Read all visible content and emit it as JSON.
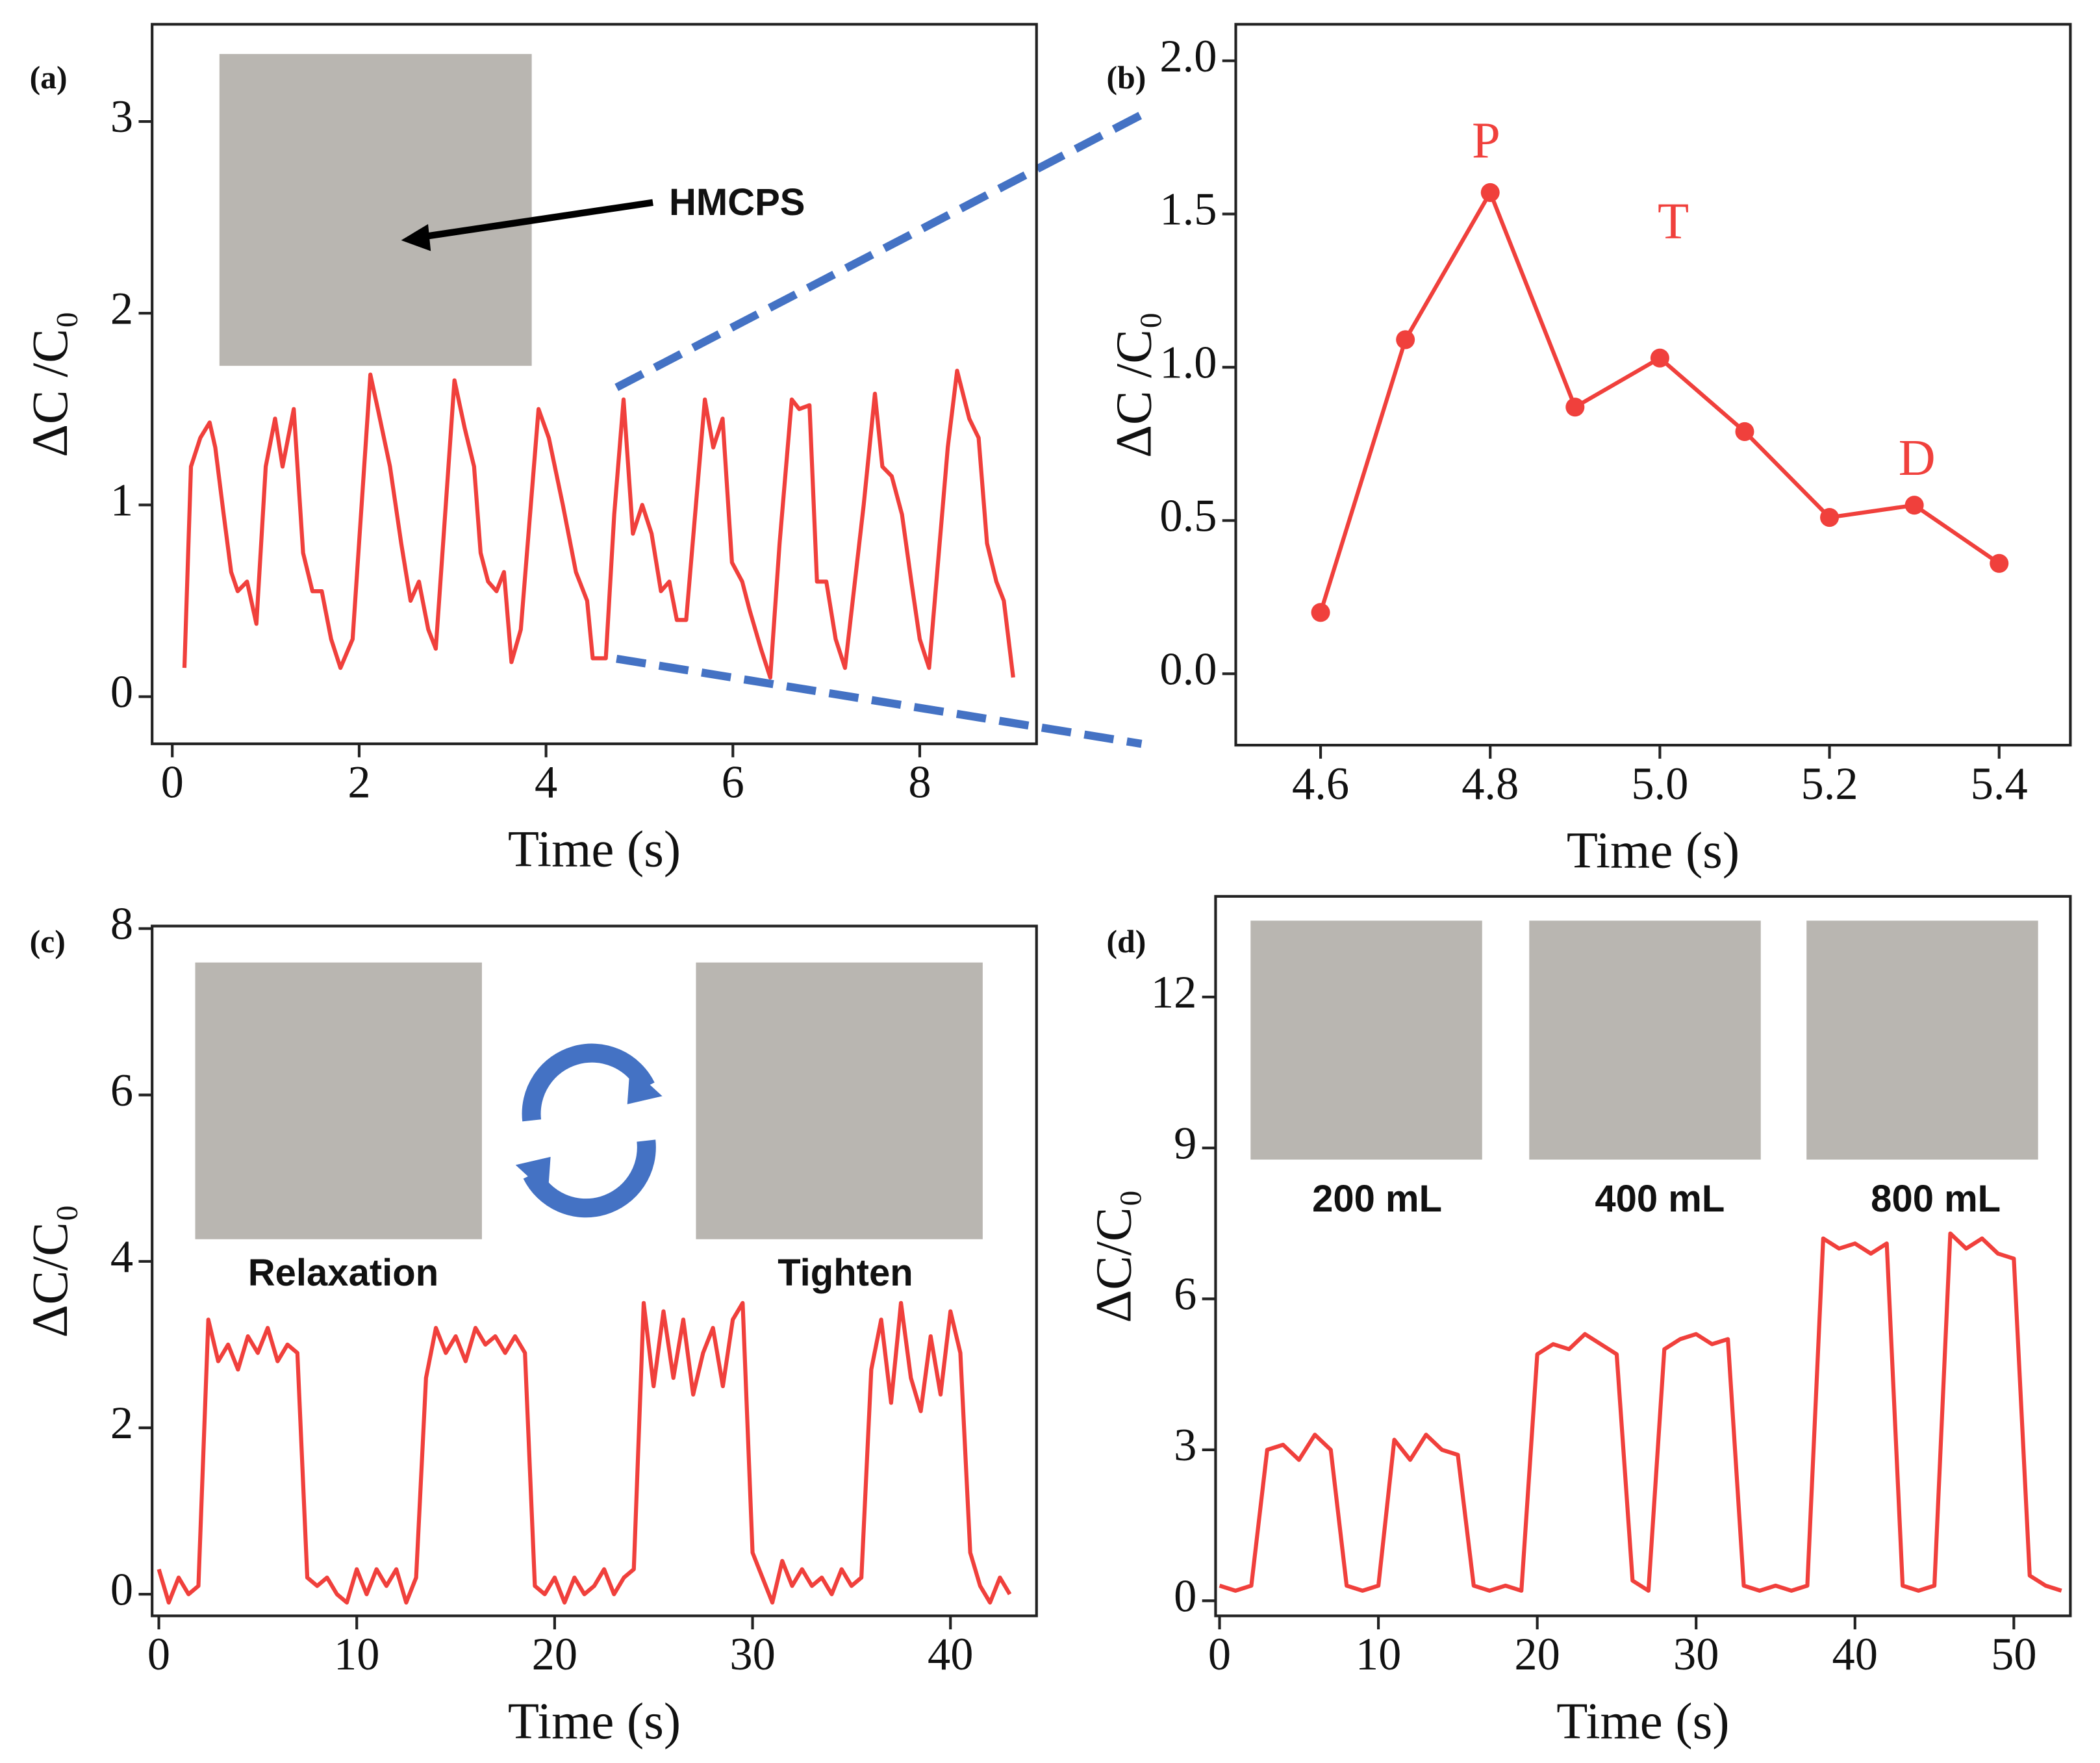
{
  "chart_data": [
    {
      "type": "line",
      "panel_label": "(a)",
      "xlabel": "Time (s)",
      "ylabel": "ΔC /C₀",
      "color": "#f0403c",
      "markers": false,
      "annotations": [
        "HMCPS"
      ],
      "x": [
        0.13,
        0.2,
        0.3,
        0.4,
        0.46,
        0.55,
        0.63,
        0.7,
        0.8,
        0.9,
        1.0,
        1.1,
        1.18,
        1.3,
        1.4,
        1.5,
        1.6,
        1.7,
        1.8,
        1.93,
        2.12,
        2.2,
        2.33,
        2.45,
        2.55,
        2.64,
        2.74,
        2.82,
        3.02,
        3.13,
        3.23,
        3.3,
        3.38,
        3.47,
        3.55,
        3.63,
        3.73,
        3.92,
        4.03,
        4.18,
        4.32,
        4.44,
        4.5,
        4.64,
        4.73,
        4.83,
        4.93,
        5.03,
        5.13,
        5.23,
        5.32,
        5.4,
        5.5,
        5.7,
        5.79,
        5.89,
        5.99,
        6.1,
        6.18,
        6.3,
        6.4,
        6.5,
        6.63,
        6.71,
        6.82,
        6.9,
        7.0,
        7.1,
        7.2,
        7.4,
        7.52,
        7.6,
        7.7,
        7.81,
        7.91,
        8.0,
        8.1,
        8.3,
        8.4,
        8.53,
        8.63,
        8.72,
        8.82,
        8.9,
        9.0
      ],
      "values": [
        0.15,
        1.2,
        1.35,
        1.43,
        1.3,
        0.95,
        0.65,
        0.55,
        0.6,
        0.38,
        1.2,
        1.45,
        1.2,
        1.5,
        0.75,
        0.55,
        0.55,
        0.3,
        0.15,
        0.3,
        1.68,
        1.5,
        1.2,
        0.8,
        0.5,
        0.6,
        0.35,
        0.25,
        1.65,
        1.4,
        1.2,
        0.75,
        0.6,
        0.55,
        0.65,
        0.18,
        0.35,
        1.5,
        1.35,
        1.0,
        0.65,
        0.5,
        0.2,
        0.2,
        0.95,
        1.55,
        0.85,
        1.0,
        0.85,
        0.55,
        0.6,
        0.4,
        0.4,
        1.55,
        1.3,
        1.45,
        0.7,
        0.6,
        0.45,
        0.25,
        0.1,
        0.8,
        1.55,
        1.5,
        1.52,
        0.6,
        0.6,
        0.3,
        0.15,
        1.0,
        1.58,
        1.2,
        1.15,
        0.95,
        0.6,
        0.3,
        0.15,
        1.3,
        1.7,
        1.45,
        1.35,
        0.8,
        0.6,
        0.5,
        0.1
      ],
      "xlim": [
        -0.216,
        9.25
      ],
      "ylim": [
        -0.246,
        3.507
      ],
      "xticks": [
        0,
        2,
        4,
        6,
        8
      ],
      "yticks": [
        0,
        1,
        2,
        3
      ]
    },
    {
      "type": "line",
      "panel_label": "(b)",
      "xlabel": "Time (s)",
      "ylabel": "ΔC /C₀",
      "color": "#f0403c",
      "markers": true,
      "annotations": [
        "P",
        "T",
        "D"
      ],
      "x": [
        4.6,
        4.7,
        4.8,
        4.9,
        5.0,
        5.1,
        5.2,
        5.3,
        5.4
      ],
      "values": [
        0.2,
        1.09,
        1.57,
        0.87,
        1.03,
        0.79,
        0.51,
        0.55,
        0.36
      ],
      "xlim": [
        4.5,
        5.484
      ],
      "ylim": [
        -0.233,
        2.119
      ],
      "xticks": [
        4.6,
        4.8,
        {
          "value": 5,
          "label": "5.0"
        },
        5.2,
        5.4
      ],
      "yticks": [
        {
          "value": 0,
          "label": "0.0"
        },
        0.5,
        {
          "value": 1,
          "label": "1.0"
        },
        1.5,
        {
          "value": 2,
          "label": "2.0"
        }
      ]
    },
    {
      "type": "line",
      "panel_label": "(c)",
      "xlabel": "Time (s)",
      "ylabel": "ΔC/C₀",
      "color": "#f0403c",
      "markers": false,
      "annotations": [
        "Relaxation",
        "Tighten"
      ],
      "x": [
        0,
        0.5,
        1,
        1.5,
        2,
        2.5,
        3,
        3.5,
        4,
        4.5,
        5,
        5.5,
        6,
        6.5,
        7,
        7.5,
        8,
        8.5,
        9,
        9.5,
        10,
        10.5,
        11,
        11.5,
        12,
        12.5,
        13,
        13.5,
        14,
        14.5,
        15,
        15.5,
        16,
        16.5,
        17,
        17.5,
        18,
        18.5,
        19,
        19.5,
        20,
        20.5,
        21,
        21.5,
        22,
        22.5,
        23,
        23.5,
        24,
        24.5,
        25,
        25.5,
        26,
        26.5,
        27,
        27.5,
        28,
        28.5,
        29,
        29.5,
        30,
        30.5,
        31,
        31.5,
        32,
        32.5,
        33,
        33.5,
        34,
        34.5,
        35,
        35.5,
        36,
        36.5,
        37,
        37.5,
        38,
        38.5,
        39,
        39.5,
        40,
        40.5,
        41,
        41.5,
        42,
        42.5,
        43
      ],
      "values": [
        0.3,
        -0.1,
        0.2,
        0.0,
        0.1,
        3.3,
        2.8,
        3.0,
        2.7,
        3.1,
        2.9,
        3.2,
        2.8,
        3.0,
        2.9,
        0.2,
        0.1,
        0.2,
        0.0,
        -0.1,
        0.3,
        0.0,
        0.3,
        0.1,
        0.3,
        -0.1,
        0.2,
        2.6,
        3.2,
        2.9,
        3.1,
        2.8,
        3.2,
        3.0,
        3.1,
        2.9,
        3.1,
        2.9,
        0.1,
        0.0,
        0.2,
        -0.1,
        0.2,
        0.0,
        0.1,
        0.3,
        0.0,
        0.2,
        0.3,
        3.5,
        2.5,
        3.4,
        2.6,
        3.3,
        2.4,
        2.9,
        3.2,
        2.5,
        3.3,
        3.5,
        0.5,
        0.2,
        -0.1,
        0.4,
        0.1,
        0.3,
        0.1,
        0.2,
        0.0,
        0.3,
        0.1,
        0.2,
        2.7,
        3.3,
        2.3,
        3.5,
        2.6,
        2.2,
        3.1,
        2.4,
        3.4,
        2.9,
        0.5,
        0.1,
        -0.1,
        0.2,
        0.0
      ],
      "xlim": [
        -0.34,
        44.35
      ],
      "ylim": [
        -0.26,
        8.03
      ],
      "xticks": [
        0,
        10,
        20,
        30,
        40
      ],
      "yticks": [
        0,
        2,
        4,
        6,
        8
      ]
    },
    {
      "type": "line",
      "panel_label": "(d)",
      "xlabel": "Time (s)",
      "ylabel": "ΔC/C₀",
      "color": "#f0403c",
      "markers": false,
      "annotations": [
        "200 mL",
        "400 mL",
        "800 mL"
      ],
      "x": [
        0,
        1,
        2,
        3,
        4,
        5,
        6,
        7,
        8,
        9,
        10,
        11,
        12,
        13,
        14,
        15,
        16,
        17,
        18,
        19,
        20,
        21,
        22,
        23,
        24,
        25,
        26,
        27,
        28,
        29,
        30,
        31,
        32,
        33,
        34,
        35,
        36,
        37,
        38,
        39,
        40,
        41,
        42,
        43,
        44,
        45,
        46,
        47,
        48,
        49,
        50,
        51,
        52,
        53
      ],
      "values": [
        0.3,
        0.2,
        0.3,
        3.0,
        3.1,
        2.8,
        3.3,
        3.0,
        0.3,
        0.2,
        0.3,
        3.2,
        2.8,
        3.3,
        3.0,
        2.9,
        0.3,
        0.2,
        0.3,
        0.2,
        4.9,
        5.1,
        5.0,
        5.3,
        5.1,
        4.9,
        0.4,
        0.2,
        5.0,
        5.2,
        5.3,
        5.1,
        5.2,
        0.3,
        0.2,
        0.3,
        0.2,
        0.3,
        7.2,
        7.0,
        7.1,
        6.9,
        7.1,
        0.3,
        0.2,
        0.3,
        7.3,
        7.0,
        7.2,
        6.9,
        6.8,
        0.5,
        0.3,
        0.2
      ],
      "xlim": [
        -0.25,
        53.56
      ],
      "ylim": [
        -0.3,
        14.0
      ],
      "xticks": [
        0,
        10,
        20,
        30,
        40,
        50
      ],
      "yticks": [
        0,
        3,
        6,
        9,
        12
      ]
    }
  ]
}
